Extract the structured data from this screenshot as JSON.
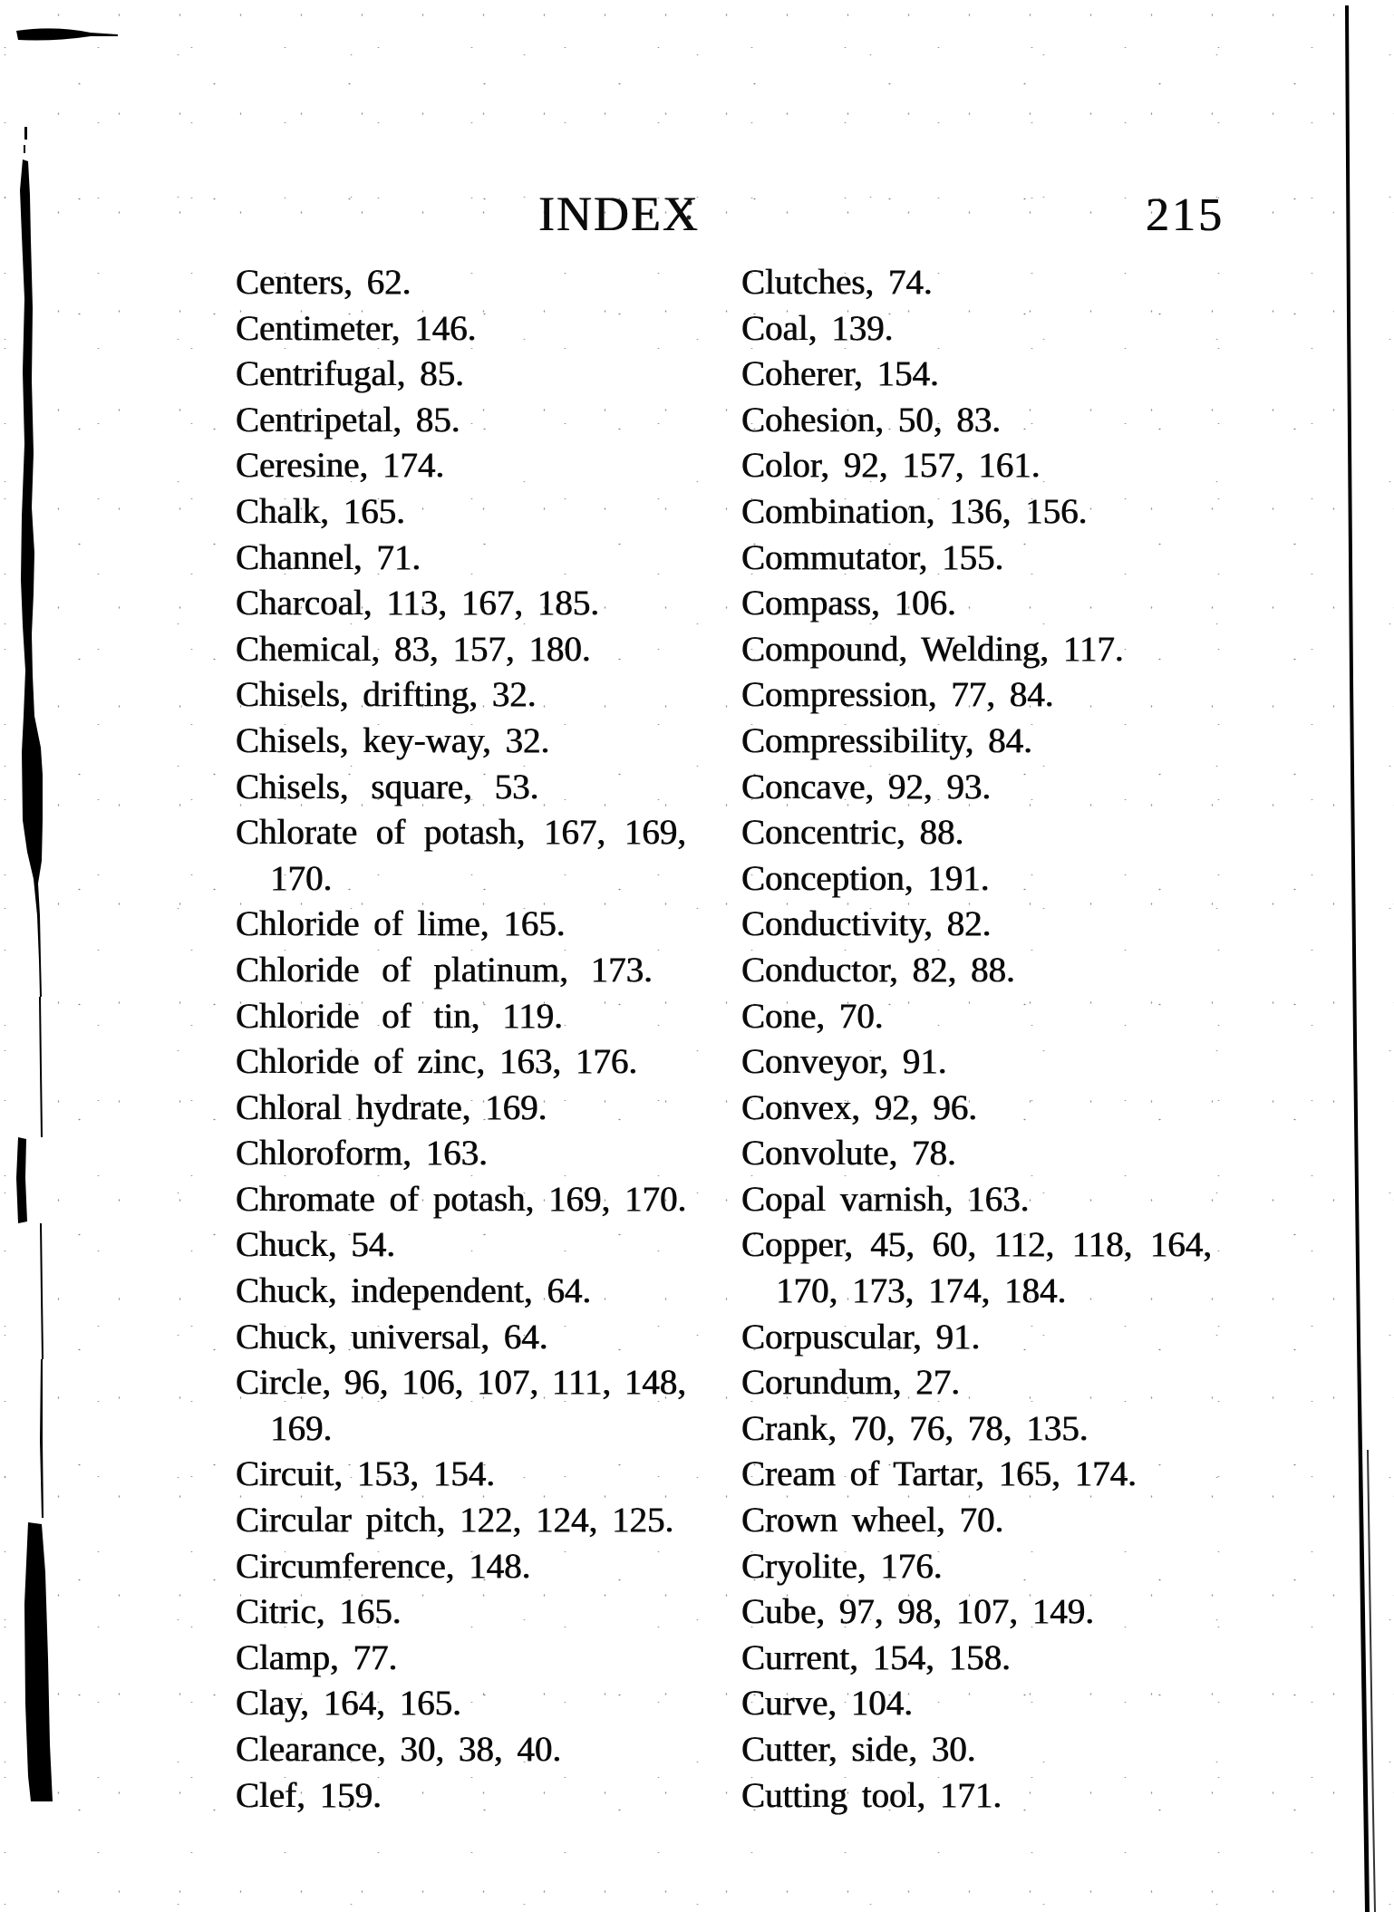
{
  "page": {
    "title": "INDEX",
    "page_number": "215"
  },
  "colors": {
    "ink": "#0b0b0b",
    "paper": "#ffffff"
  },
  "index": {
    "left_column": [
      {
        "text": "Centers, 62."
      },
      {
        "text": "Centimeter, 146."
      },
      {
        "text": "Centrifugal, 85."
      },
      {
        "text": "Centripetal, 85."
      },
      {
        "text": "Ceresine, 174."
      },
      {
        "text": "Chalk, 165."
      },
      {
        "text": "Channel, 71."
      },
      {
        "text": "Charcoal, 113, 167, 185."
      },
      {
        "text": "Chemical, 83, 157, 180."
      },
      {
        "text": "Chisels, drifting, 32."
      },
      {
        "text": "Chisels, key-way, 32."
      },
      {
        "text": "Chisels, square, 53.",
        "spread": true
      },
      {
        "text": "Chlorate of potash, 167, 169,",
        "justify": true
      },
      {
        "text": "170.",
        "indent": true
      },
      {
        "text": "Chloride of lime, 165."
      },
      {
        "text": "Chloride of platinum, 173.",
        "spread": true
      },
      {
        "text": "Chloride of tin, 119.",
        "spread": true
      },
      {
        "text": "Chloride of zinc, 163, 176."
      },
      {
        "text": "Chloral hydrate, 169."
      },
      {
        "text": "Chloroform, 163."
      },
      {
        "text": "Chromate of potash, 169, 170."
      },
      {
        "text": "Chuck, 54."
      },
      {
        "text": "Chuck, independent, 64."
      },
      {
        "text": "Chuck, universal, 64."
      },
      {
        "text": "Circle, 96, 106, 107, 111, 148,",
        "justify": true
      },
      {
        "text": "169.",
        "indent": true
      },
      {
        "text": "Circuit, 153, 154."
      },
      {
        "text": "Circular pitch, 122, 124, 125."
      },
      {
        "text": "Circumference, 148."
      },
      {
        "text": "Citric, 165."
      },
      {
        "text": "Clamp, 77."
      },
      {
        "text": "Clay, 164, 165."
      },
      {
        "text": "Clearance, 30, 38, 40."
      },
      {
        "text": "Clef, 159."
      }
    ],
    "right_column": [
      {
        "text": "Clutches, 74."
      },
      {
        "text": "Coal, 139."
      },
      {
        "text": "Coherer, 154."
      },
      {
        "text": "Cohesion, 50, 83."
      },
      {
        "text": "Color, 92, 157, 161."
      },
      {
        "text": "Combination, 136, 156."
      },
      {
        "text": "Commutator, 155."
      },
      {
        "text": "Compass, 106."
      },
      {
        "text": "Compound, Welding, 117."
      },
      {
        "text": "Compression, 77, 84."
      },
      {
        "text": "Compressibility, 84."
      },
      {
        "text": "Concave, 92, 93."
      },
      {
        "text": "Concentric, 88."
      },
      {
        "text": "Conception, 191."
      },
      {
        "text": "Conductivity, 82."
      },
      {
        "text": "Conductor, 82, 88."
      },
      {
        "text": "Cone, 70."
      },
      {
        "text": "Conveyor, 91."
      },
      {
        "text": "Convex, 92, 96."
      },
      {
        "text": "Convolute, 78."
      },
      {
        "text": "Copal varnish, 163."
      },
      {
        "text": "Copper, 45, 60, 112, 118, 164,",
        "justify": true
      },
      {
        "text": "170, 173, 174, 184.",
        "indent": true
      },
      {
        "text": "Corpuscular, 91."
      },
      {
        "text": "Corundum, 27."
      },
      {
        "text": "Crank, 70, 76, 78, 135."
      },
      {
        "text": "Cream of Tartar, 165, 174."
      },
      {
        "text": "Crown wheel, 70."
      },
      {
        "text": "Cryolite, 176."
      },
      {
        "text": "Cube, 97, 98, 107, 149."
      },
      {
        "text": "Current, 154, 158."
      },
      {
        "text": "Curve, 104."
      },
      {
        "text": "Cutter, side, 30."
      },
      {
        "text": "Cutting tool, 171."
      }
    ]
  }
}
